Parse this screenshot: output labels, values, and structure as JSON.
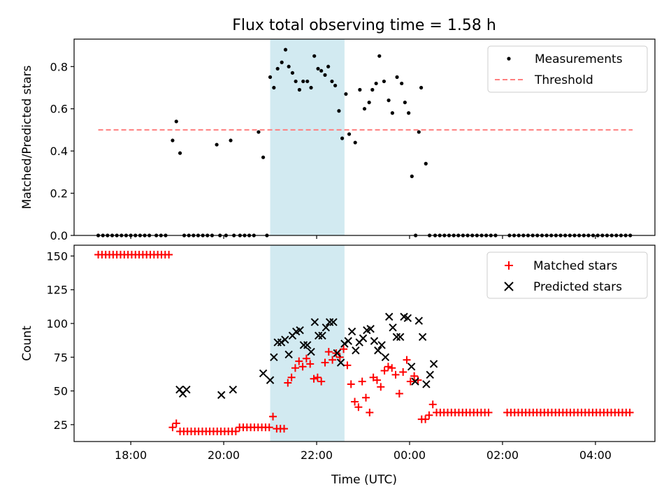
{
  "figure": {
    "title": "Flux total observing time = 1.58 h"
  },
  "colors": {
    "measurement": "#000000",
    "threshold": "#ff7f7f",
    "matched": "#ff0000",
    "predicted": "#000000",
    "observing_window": "#add8e6"
  },
  "chart_data": [
    {
      "type": "scatter",
      "title": "Flux total observing time = 1.58 h",
      "xlabel": "",
      "ylabel": "Matched/Predicted stars",
      "x_unit": "hours (UTC, continuing past midnight)",
      "xlim": [
        16.78,
        29.28
      ],
      "ylim": [
        0,
        0.93
      ],
      "y_ticks": [
        "0.0",
        "0.2",
        "0.4",
        "0.6",
        "0.8"
      ],
      "y_tick_values": [
        0,
        0.2,
        0.4,
        0.6,
        0.8
      ],
      "grid": false,
      "legend": {
        "placement": "top-right",
        "entries": [
          "Measurements",
          "Threshold"
        ]
      },
      "observing_window": [
        21.0,
        22.6
      ],
      "threshold": {
        "name": "Threshold",
        "value": 0.5,
        "x_range": [
          17.3,
          28.8
        ]
      },
      "series": [
        {
          "name": "Measurements",
          "x": [
            17.3,
            17.4,
            17.5,
            17.6,
            17.7,
            17.8,
            17.9,
            18.0,
            18.1,
            18.2,
            18.3,
            18.4,
            18.55,
            18.65,
            18.75,
            18.9,
            18.98,
            19.06,
            19.15,
            19.25,
            19.35,
            19.45,
            19.55,
            19.65,
            19.75,
            19.85,
            19.92,
            20.05,
            20.15,
            20.22,
            20.35,
            20.45,
            20.55,
            20.65,
            20.75,
            20.85,
            20.93,
            21.0,
            21.08,
            21.16,
            21.25,
            21.33,
            21.4,
            21.48,
            21.55,
            21.63,
            21.71,
            21.8,
            21.88,
            21.95,
            22.03,
            22.1,
            22.18,
            22.25,
            22.33,
            22.4,
            22.48,
            22.55,
            22.63,
            22.7,
            22.83,
            22.93,
            23.03,
            23.13,
            23.2,
            23.28,
            23.35,
            23.45,
            23.55,
            23.63,
            23.73,
            23.83,
            23.9,
            23.98,
            24.05,
            24.13,
            24.2,
            24.25,
            24.35,
            24.43,
            24.55,
            24.65,
            24.75,
            24.85,
            24.95,
            25.05,
            25.15,
            25.25,
            25.35,
            25.45,
            25.55,
            25.65,
            25.75,
            25.85,
            26.15,
            26.25,
            26.35,
            26.45,
            26.55,
            26.65,
            26.75,
            26.85,
            26.95,
            27.05,
            27.15,
            27.25,
            27.35,
            27.45,
            27.55,
            27.65,
            27.75,
            27.85,
            27.95,
            28.05,
            28.15,
            28.25,
            28.35,
            28.45,
            28.55,
            28.65,
            28.75
          ],
          "y": [
            0,
            0,
            0,
            0,
            0,
            0,
            0,
            0,
            0,
            0,
            0,
            0,
            0,
            0,
            0,
            0.45,
            0.54,
            0.39,
            0,
            0,
            0,
            0,
            0,
            0,
            0,
            0.43,
            0,
            0,
            0.45,
            0,
            0,
            0,
            0,
            0,
            0.49,
            0.37,
            0,
            0.75,
            0.7,
            0.79,
            0.82,
            0.88,
            0.8,
            0.77,
            0.73,
            0.69,
            0.73,
            0.73,
            0.7,
            0.85,
            0.79,
            0.78,
            0.76,
            0.8,
            0.73,
            0.71,
            0.59,
            0.46,
            0.67,
            0.48,
            0.44,
            0.69,
            0.6,
            0.63,
            0.69,
            0.72,
            0.85,
            0.73,
            0.64,
            0.58,
            0.75,
            0.72,
            0.63,
            0.58,
            0.28,
            0,
            0.49,
            0.7,
            0.34,
            0,
            0,
            0,
            0,
            0,
            0,
            0,
            0,
            0,
            0,
            0,
            0,
            0,
            0,
            0,
            0,
            0,
            0,
            0,
            0,
            0,
            0,
            0,
            0,
            0,
            0,
            0,
            0,
            0,
            0,
            0,
            0,
            0,
            0,
            0,
            0,
            0,
            0,
            0,
            0,
            0,
            0
          ]
        }
      ]
    },
    {
      "type": "scatter",
      "title": "",
      "xlabel": "Time (UTC)",
      "ylabel": "Count",
      "x_unit": "hours (UTC, continuing past midnight)",
      "xlim": [
        16.78,
        29.28
      ],
      "ylim": [
        12.5,
        158
      ],
      "x_tick_values": [
        18,
        20,
        22,
        24,
        26,
        28
      ],
      "x_ticks": [
        "18:00",
        "20:00",
        "22:00",
        "00:00",
        "02:00",
        "04:00"
      ],
      "y_ticks": [
        "25",
        "50",
        "75",
        "100",
        "125",
        "150"
      ],
      "y_tick_values": [
        25,
        50,
        75,
        100,
        125,
        150
      ],
      "grid": false,
      "legend": {
        "placement": "top-right",
        "entries": [
          "Matched stars",
          "Predicted stars"
        ]
      },
      "observing_window": [
        21.0,
        22.6
      ],
      "series": [
        {
          "name": "Matched stars",
          "x": [
            17.3,
            17.38,
            17.46,
            17.54,
            17.62,
            17.7,
            17.78,
            17.86,
            17.94,
            18.02,
            18.1,
            18.18,
            18.26,
            18.34,
            18.42,
            18.5,
            18.58,
            18.66,
            18.74,
            18.82,
            18.9,
            18.98,
            19.06,
            19.14,
            19.22,
            19.3,
            19.38,
            19.46,
            19.54,
            19.62,
            19.7,
            19.78,
            19.86,
            19.94,
            20.02,
            20.1,
            20.18,
            20.26,
            20.34,
            20.42,
            20.5,
            20.58,
            20.66,
            20.74,
            20.82,
            20.9,
            20.98,
            21.06,
            21.14,
            21.22,
            21.3,
            21.38,
            21.46,
            21.54,
            21.62,
            21.7,
            21.78,
            21.86,
            21.94,
            22.02,
            22.1,
            22.18,
            22.26,
            22.34,
            22.42,
            22.5,
            22.58,
            22.66,
            22.74,
            22.82,
            22.9,
            22.98,
            23.06,
            23.14,
            23.22,
            23.3,
            23.38,
            23.46,
            23.54,
            23.62,
            23.7,
            23.78,
            23.86,
            23.94,
            24.02,
            24.1,
            24.18,
            24.26,
            24.34,
            24.42,
            24.5,
            24.58,
            24.66,
            24.74,
            24.82,
            24.9,
            24.98,
            25.06,
            25.14,
            25.22,
            25.3,
            25.38,
            25.46,
            25.54,
            25.62,
            25.7,
            26.1,
            26.18,
            26.26,
            26.34,
            26.42,
            26.5,
            26.58,
            26.66,
            26.74,
            26.82,
            26.9,
            26.98,
            27.06,
            27.14,
            27.22,
            27.3,
            27.38,
            27.46,
            27.54,
            27.62,
            27.7,
            27.78,
            27.86,
            27.94,
            28.02,
            28.1,
            28.18,
            28.26,
            28.34,
            28.42,
            28.5,
            28.58,
            28.66,
            28.74
          ],
          "y": [
            151,
            151,
            151,
            151,
            151,
            151,
            151,
            151,
            151,
            151,
            151,
            151,
            151,
            151,
            151,
            151,
            151,
            151,
            151,
            151,
            23,
            26,
            20,
            20,
            20,
            20,
            20,
            20,
            20,
            20,
            20,
            20,
            20,
            20,
            20,
            20,
            20,
            20,
            23,
            23,
            23,
            23,
            23,
            23,
            23,
            23,
            23,
            31,
            22,
            22,
            22,
            56,
            60,
            67,
            72,
            68,
            74,
            70,
            59,
            60,
            57,
            71,
            79,
            73,
            78,
            75,
            81,
            69,
            55,
            42,
            38,
            57,
            45,
            34,
            60,
            58,
            53,
            65,
            68,
            67,
            62,
            48,
            64,
            73,
            57,
            61,
            58,
            29,
            29,
            32,
            40,
            34,
            34,
            34,
            34,
            34,
            34,
            34,
            34,
            34,
            34,
            34,
            34,
            34,
            34,
            34,
            34,
            34,
            34,
            34,
            34,
            34,
            34,
            34,
            34,
            34,
            34,
            34,
            34,
            34,
            34,
            34,
            34,
            34,
            34,
            34,
            34,
            34,
            34,
            34,
            34,
            34,
            34,
            34,
            34,
            34,
            34,
            34,
            34,
            34
          ]
        },
        {
          "name": "Predicted stars",
          "x": [
            19.05,
            19.12,
            19.2,
            19.95,
            20.2,
            20.85,
            21.0,
            21.08,
            21.16,
            21.24,
            21.32,
            21.4,
            21.48,
            21.56,
            21.64,
            21.72,
            21.8,
            21.88,
            21.96,
            22.04,
            22.12,
            22.2,
            22.28,
            22.36,
            22.44,
            22.52,
            22.6,
            22.68,
            22.76,
            22.84,
            22.92,
            23.0,
            23.08,
            23.16,
            23.24,
            23.32,
            23.4,
            23.48,
            23.56,
            23.64,
            23.72,
            23.8,
            23.88,
            23.96,
            24.04,
            24.12,
            24.2,
            24.28,
            24.36,
            24.44,
            24.52
          ],
          "y": [
            51,
            48,
            51,
            47,
            51,
            63,
            58,
            75,
            86,
            86,
            88,
            77,
            91,
            94,
            95,
            84,
            84,
            79,
            101,
            91,
            91,
            97,
            101,
            101,
            78,
            71,
            85,
            87,
            94,
            80,
            86,
            89,
            95,
            96,
            87,
            80,
            84,
            75,
            105,
            97,
            90,
            90,
            105,
            104,
            68,
            57,
            102,
            90,
            55,
            62,
            70
          ]
        }
      ]
    }
  ]
}
